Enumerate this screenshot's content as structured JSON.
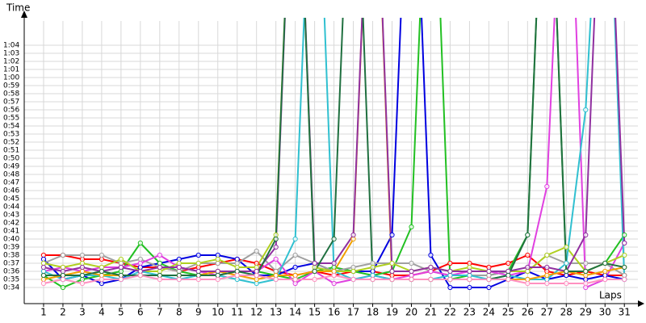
{
  "chart_data": {
    "type": "line",
    "ylabel": "Time",
    "xlabel": "Laps",
    "x": [
      1,
      2,
      3,
      4,
      5,
      6,
      7,
      8,
      9,
      10,
      11,
      12,
      13,
      14,
      15,
      16,
      17,
      18,
      19,
      20,
      21,
      22,
      23,
      24,
      25,
      26,
      27,
      28,
      29,
      30,
      31
    ],
    "xlim": [
      0,
      31.7
    ],
    "ylim": [
      32,
      67
    ],
    "grid": true,
    "xticks": [
      1,
      2,
      3,
      4,
      5,
      6,
      7,
      8,
      9,
      10,
      11,
      12,
      13,
      14,
      15,
      16,
      17,
      18,
      19,
      20,
      21,
      22,
      23,
      24,
      25,
      26,
      27,
      28,
      29,
      30,
      31
    ],
    "yticks": [
      {
        "value": 34,
        "label": "0:34"
      },
      {
        "value": 35,
        "label": "0:35"
      },
      {
        "value": 36,
        "label": "0:36"
      },
      {
        "value": 37,
        "label": "0:37"
      },
      {
        "value": 38,
        "label": "0:38"
      },
      {
        "value": 39,
        "label": "0:39"
      },
      {
        "value": 40,
        "label": "0:40"
      },
      {
        "value": 41,
        "label": "0:41"
      },
      {
        "value": 42,
        "label": "0:42"
      },
      {
        "value": 43,
        "label": "0:43"
      },
      {
        "value": 44,
        "label": "0:44"
      },
      {
        "value": 45,
        "label": "0:45"
      },
      {
        "value": 46,
        "label": "0:46"
      },
      {
        "value": 47,
        "label": "0:47"
      },
      {
        "value": 48,
        "label": "0:48"
      },
      {
        "value": 49,
        "label": "0:49"
      },
      {
        "value": 50,
        "label": "0:50"
      },
      {
        "value": 51,
        "label": "0:51"
      },
      {
        "value": 52,
        "label": "0:52"
      },
      {
        "value": 53,
        "label": "0:53"
      },
      {
        "value": 54,
        "label": "0:54"
      },
      {
        "value": 55,
        "label": "0:55"
      },
      {
        "value": 56,
        "label": "0:56"
      },
      {
        "value": 57,
        "label": "0:57"
      },
      {
        "value": 58,
        "label": "0:58"
      },
      {
        "value": 59,
        "label": "0:59"
      },
      {
        "value": 60,
        "label": "1:00"
      },
      {
        "value": 61,
        "label": "1:01"
      },
      {
        "value": 62,
        "label": "1:02"
      },
      {
        "value": 63,
        "label": "1:03"
      },
      {
        "value": 64,
        "label": "1:04"
      }
    ],
    "series": [
      {
        "color": "#ff0000",
        "values": [
          38,
          38,
          37.5,
          37.5,
          37,
          36.5,
          36.5,
          36,
          36.5,
          37,
          37.5,
          37,
          36,
          35.5,
          36,
          35.5,
          36,
          36,
          35.5,
          35.5,
          36,
          37,
          37,
          36.5,
          37,
          38,
          36,
          35.5,
          36,
          35.5,
          35.5
        ]
      },
      {
        "color": "#0000e0",
        "values": [
          37.5,
          35,
          35.5,
          34.5,
          35,
          36.5,
          37,
          37.5,
          38,
          38,
          37.5,
          35.5,
          35.5,
          36.5,
          37,
          36,
          36,
          36,
          40.5,
          100,
          38,
          34,
          34,
          34,
          35,
          36,
          35,
          35.5,
          35,
          35.5,
          35
        ]
      },
      {
        "color": "#22c022",
        "values": [
          35.5,
          34,
          35,
          35.5,
          36,
          39.5,
          37,
          36,
          35.5,
          36,
          36,
          36,
          35.5,
          35,
          36,
          36.5,
          36,
          35.5,
          36,
          41.5,
          100,
          35,
          35.5,
          35.5,
          36,
          40.5,
          100,
          36,
          36,
          37,
          40.5
        ]
      },
      {
        "color": "#a0a0a0",
        "values": [
          37,
          38,
          38,
          38,
          37,
          37.5,
          36.5,
          36,
          37,
          37,
          37,
          38.5,
          36,
          38,
          37,
          36,
          36.5,
          37,
          37,
          37,
          36,
          35.5,
          35.5,
          35.5,
          36,
          36,
          38,
          37,
          37,
          37,
          35.5
        ]
      },
      {
        "color": "#e040e0",
        "values": [
          36,
          36.5,
          36,
          36.5,
          36.5,
          37,
          38,
          36.5,
          36,
          35.5,
          36,
          36,
          37.5,
          34.5,
          36,
          34.5,
          35,
          35.5,
          35,
          35.5,
          36,
          35.5,
          36,
          36,
          35.5,
          36,
          46.5,
          100,
          34,
          35,
          39.5
        ]
      },
      {
        "color": "#b0d020",
        "values": [
          37,
          36.5,
          37,
          36.5,
          37.5,
          36,
          36,
          37,
          37,
          37.5,
          36.5,
          36.5,
          40.5,
          100,
          36.5,
          36,
          36,
          36.5,
          37,
          36,
          36.5,
          36,
          36.5,
          36,
          36,
          36,
          38,
          39,
          36,
          37,
          38
        ]
      },
      {
        "color": "#30c0d0",
        "values": [
          36,
          35,
          35.5,
          35.5,
          35,
          36,
          35.5,
          35,
          35.5,
          35.5,
          35,
          34.5,
          35,
          40,
          100,
          36,
          35,
          35.5,
          35,
          35,
          35,
          35.5,
          35.5,
          35,
          35.5,
          35,
          35,
          37,
          56,
          100,
          35
        ]
      },
      {
        "color": "#f0a000",
        "values": [
          35,
          35.5,
          36,
          35.5,
          35.5,
          35.5,
          35.5,
          35.5,
          35.5,
          36,
          35.5,
          35,
          35.5,
          35.5,
          36,
          36,
          40,
          100,
          35,
          35,
          35,
          35,
          35,
          35,
          35,
          35,
          35.5,
          36,
          35.5,
          36,
          36.5
        ]
      },
      {
        "color": "#9030a0",
        "values": [
          36.5,
          36,
          36.5,
          36,
          36.5,
          36,
          36.5,
          36.5,
          36,
          36,
          36,
          36,
          39,
          100,
          37,
          37,
          40.5,
          100,
          36,
          36,
          36.5,
          36,
          36,
          36,
          36,
          36.5,
          36.5,
          36,
          40.5,
          100,
          39.5
        ]
      },
      {
        "color": "#207040",
        "values": [
          35.5,
          35.5,
          35.5,
          36,
          35.5,
          35.5,
          35.5,
          35.5,
          35.5,
          35.5,
          36,
          35.5,
          40,
          100,
          36,
          40,
          100,
          35,
          35,
          35,
          35,
          35,
          35,
          35,
          35.5,
          40.5,
          100,
          36,
          36,
          37,
          36.5
        ]
      },
      {
        "color": "#ff90c0",
        "values": [
          34.5,
          35,
          34.5,
          35,
          35,
          35.5,
          35,
          35,
          35,
          35,
          35.5,
          35.5,
          35,
          35,
          35,
          35.5,
          35,
          35,
          35,
          35,
          35,
          35,
          35,
          35,
          35,
          34.5,
          34.5,
          34.5,
          34.5,
          35,
          35
        ]
      }
    ]
  }
}
